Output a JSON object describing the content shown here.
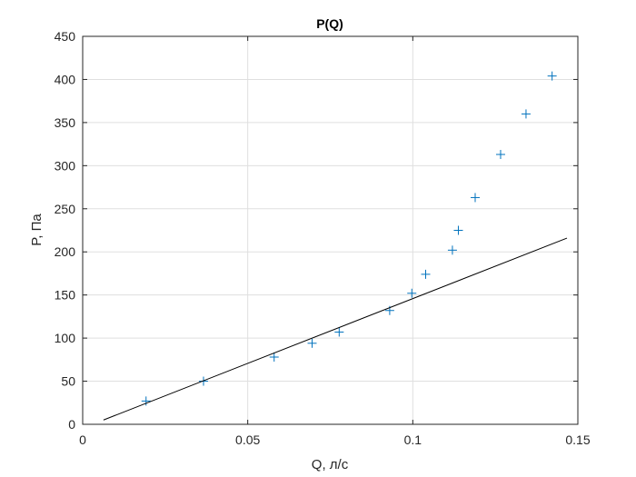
{
  "chart_data": {
    "type": "scatter",
    "title": "P(Q)",
    "xlabel": "Q, л/с",
    "ylabel": "P, Па",
    "xlim": [
      0,
      0.15
    ],
    "ylim": [
      0,
      450
    ],
    "xticks": [
      0,
      0.05,
      0.1,
      0.15
    ],
    "xtick_labels": [
      "0",
      "0.05",
      "0.1",
      "0.15"
    ],
    "yticks": [
      0,
      50,
      100,
      150,
      200,
      250,
      300,
      350,
      400,
      450
    ],
    "ytick_labels": [
      "0",
      "50",
      "100",
      "150",
      "200",
      "250",
      "300",
      "350",
      "400",
      "450"
    ],
    "grid": true,
    "series": [
      {
        "type": "scatter",
        "marker": "+",
        "color": "#0072BD",
        "x": [
          0.0192,
          0.0366,
          0.058,
          0.0695,
          0.0777,
          0.093,
          0.0997,
          0.1039,
          0.112,
          0.1138,
          0.1189,
          0.1266,
          0.1343,
          0.1422
        ],
        "y": [
          27,
          50,
          78,
          94,
          107,
          132,
          152,
          174,
          202,
          225,
          263,
          313,
          360,
          404
        ]
      },
      {
        "type": "line",
        "color": "#000000",
        "x": [
          0.0063,
          0.1467
        ],
        "y": [
          5,
          216
        ]
      }
    ]
  }
}
